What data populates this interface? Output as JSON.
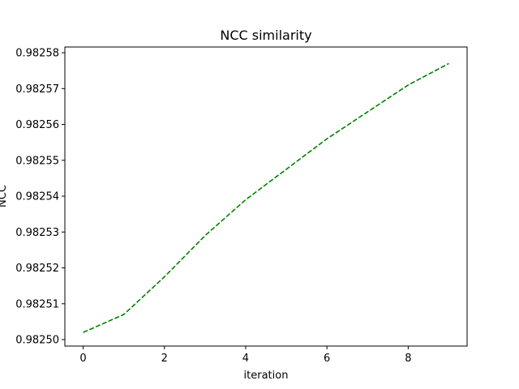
{
  "chart_data": {
    "type": "line",
    "title": "NCC similarity",
    "xlabel": "iteration",
    "ylabel": "NCC",
    "xlim": [
      -0.45,
      9.45
    ],
    "ylim": [
      0.9824982,
      0.9825816
    ],
    "xticks": [
      0,
      2,
      4,
      6,
      8
    ],
    "yticks": [
      0.9825,
      0.98251,
      0.98252,
      0.98253,
      0.98254,
      0.98255,
      0.98256,
      0.98257,
      0.98258
    ],
    "ytick_labels": [
      "0.98250",
      "0.98251",
      "0.98252",
      "0.98253",
      "0.98254",
      "0.98255",
      "0.98256",
      "0.98257",
      "0.98258"
    ],
    "grid": false,
    "legend": "none",
    "series": [
      {
        "color": "#008000",
        "line_style": "dashed",
        "x": [
          0,
          1,
          2,
          3,
          4,
          5,
          6,
          7,
          8,
          9
        ],
        "y": [
          0.982502,
          0.982507,
          0.9825175,
          0.982529,
          0.982539,
          0.9825475,
          0.982556,
          0.9825635,
          0.982571,
          0.982577
        ]
      }
    ]
  }
}
